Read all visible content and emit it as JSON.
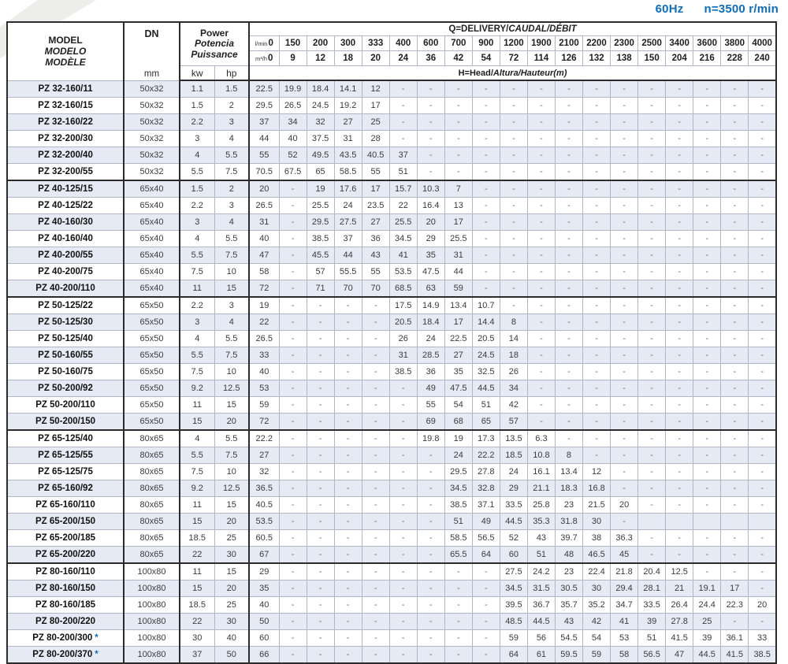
{
  "meta": {
    "frequency": "60Hz",
    "speed": "n=3500 r/min"
  },
  "styles": {
    "accent_blue": "#0e6db6",
    "row_shade": "#e6eaf4",
    "border_dark": "#2b2b2b",
    "border_light": "#b0b7c4"
  },
  "header": {
    "model_lines": [
      "MODEL",
      "MODELO",
      "MODÈLE"
    ],
    "dn_label": "DN",
    "dn_unit": "mm",
    "power_lines": [
      "Power",
      "Potencia",
      "Puissance"
    ],
    "kw_label": "kw",
    "hp_label": "hp",
    "q_title_en": "Q=DELIVERY/",
    "q_title_intl": "CAUDAL/DÉBIT",
    "flow_lmin_label": "l/min",
    "flow_m3h_label": "m³/h",
    "lmin": [
      "0",
      "150",
      "200",
      "300",
      "333",
      "400",
      "600",
      "700",
      "900",
      "1200",
      "1900",
      "2100",
      "2200",
      "2300",
      "2500",
      "3400",
      "3600",
      "3800",
      "4000"
    ],
    "m3h": [
      "0",
      "9",
      "12",
      "18",
      "20",
      "24",
      "36",
      "42",
      "54",
      "72",
      "114",
      "126",
      "132",
      "138",
      "150",
      "204",
      "216",
      "228",
      "240"
    ],
    "h_title_en": "H=Head/",
    "h_title_intl": "Altura/Hauteur(m)"
  },
  "rows": [
    {
      "model": "PZ 32-160/11",
      "star": "",
      "dn": "50x32",
      "kw": "1.1",
      "hp": "1.5",
      "group_end": false,
      "h": [
        "22.5",
        "19.9",
        "18.4",
        "14.1",
        "12",
        "-",
        "-",
        "-",
        "-",
        "-",
        "-",
        "-",
        "-",
        "-",
        "-",
        "-",
        "-",
        "-",
        "-"
      ]
    },
    {
      "model": "PZ 32-160/15",
      "star": "",
      "dn": "50x32",
      "kw": "1.5",
      "hp": "2",
      "group_end": false,
      "h": [
        "29.5",
        "26.5",
        "24.5",
        "19.2",
        "17",
        "-",
        "-",
        "-",
        "-",
        "-",
        "-",
        "-",
        "-",
        "-",
        "-",
        "-",
        "-",
        "-",
        "-"
      ]
    },
    {
      "model": "PZ 32-160/22",
      "star": "",
      "dn": "50x32",
      "kw": "2.2",
      "hp": "3",
      "group_end": false,
      "h": [
        "37",
        "34",
        "32",
        "27",
        "25",
        "-",
        "-",
        "-",
        "-",
        "-",
        "-",
        "-",
        "-",
        "-",
        "-",
        "-",
        "-",
        "-",
        "-"
      ]
    },
    {
      "model": "PZ 32-200/30",
      "star": "",
      "dn": "50x32",
      "kw": "3",
      "hp": "4",
      "group_end": false,
      "h": [
        "44",
        "40",
        "37.5",
        "31",
        "28",
        "-",
        "-",
        "-",
        "-",
        "-",
        "-",
        "-",
        "-",
        "-",
        "-",
        "-",
        "-",
        "-",
        "-"
      ]
    },
    {
      "model": "PZ 32-200/40",
      "star": "",
      "dn": "50x32",
      "kw": "4",
      "hp": "5.5",
      "group_end": false,
      "h": [
        "55",
        "52",
        "49.5",
        "43.5",
        "40.5",
        "37",
        "-",
        "-",
        "-",
        "-",
        "-",
        "-",
        "-",
        "-",
        "-",
        "-",
        "-",
        "-",
        "-"
      ]
    },
    {
      "model": "PZ 32-200/55",
      "star": "",
      "dn": "50x32",
      "kw": "5.5",
      "hp": "7.5",
      "group_end": true,
      "h": [
        "70.5",
        "67.5",
        "65",
        "58.5",
        "55",
        "51",
        "-",
        "-",
        "-",
        "-",
        "-",
        "-",
        "-",
        "-",
        "-",
        "-",
        "-",
        "-",
        "-"
      ]
    },
    {
      "model": "PZ 40-125/15",
      "star": "",
      "dn": "65x40",
      "kw": "1.5",
      "hp": "2",
      "group_end": false,
      "h": [
        "20",
        "-",
        "19",
        "17.6",
        "17",
        "15.7",
        "10.3",
        "7",
        "-",
        "-",
        "-",
        "-",
        "-",
        "-",
        "-",
        "-",
        "-",
        "-",
        "-"
      ]
    },
    {
      "model": "PZ 40-125/22",
      "star": "",
      "dn": "65x40",
      "kw": "2.2",
      "hp": "3",
      "group_end": false,
      "h": [
        "26.5",
        "-",
        "25.5",
        "24",
        "23.5",
        "22",
        "16.4",
        "13",
        "-",
        "-",
        "-",
        "-",
        "-",
        "-",
        "-",
        "-",
        "-",
        "-",
        "-"
      ]
    },
    {
      "model": "PZ 40-160/30",
      "star": "",
      "dn": "65x40",
      "kw": "3",
      "hp": "4",
      "group_end": false,
      "h": [
        "31",
        "-",
        "29.5",
        "27.5",
        "27",
        "25.5",
        "20",
        "17",
        "-",
        "-",
        "-",
        "-",
        "-",
        "-",
        "-",
        "-",
        "-",
        "-",
        "-"
      ]
    },
    {
      "model": "PZ 40-160/40",
      "star": "",
      "dn": "65x40",
      "kw": "4",
      "hp": "5.5",
      "group_end": false,
      "h": [
        "40",
        "-",
        "38.5",
        "37",
        "36",
        "34.5",
        "29",
        "25.5",
        "-",
        "-",
        "-",
        "-",
        "-",
        "-",
        "-",
        "-",
        "-",
        "-",
        "-"
      ]
    },
    {
      "model": "PZ 40-200/55",
      "star": "",
      "dn": "65x40",
      "kw": "5.5",
      "hp": "7.5",
      "group_end": false,
      "h": [
        "47",
        "-",
        "45.5",
        "44",
        "43",
        "41",
        "35",
        "31",
        "-",
        "-",
        "-",
        "-",
        "-",
        "-",
        "-",
        "-",
        "-",
        "-",
        "-"
      ]
    },
    {
      "model": "PZ 40-200/75",
      "star": "",
      "dn": "65x40",
      "kw": "7.5",
      "hp": "10",
      "group_end": false,
      "h": [
        "58",
        "-",
        "57",
        "55.5",
        "55",
        "53.5",
        "47.5",
        "44",
        "-",
        "-",
        "-",
        "-",
        "-",
        "-",
        "-",
        "-",
        "-",
        "-",
        "-"
      ]
    },
    {
      "model": "PZ 40-200/110",
      "star": "",
      "dn": "65x40",
      "kw": "11",
      "hp": "15",
      "group_end": true,
      "h": [
        "72",
        "-",
        "71",
        "70",
        "70",
        "68.5",
        "63",
        "59",
        "-",
        "-",
        "-",
        "-",
        "-",
        "-",
        "-",
        "-",
        "-",
        "-",
        "-"
      ]
    },
    {
      "model": "PZ 50-125/22",
      "star": "",
      "dn": "65x50",
      "kw": "2.2",
      "hp": "3",
      "group_end": false,
      "h": [
        "19",
        "-",
        "-",
        "-",
        "-",
        "17.5",
        "14.9",
        "13.4",
        "10.7",
        "-",
        "-",
        "-",
        "-",
        "-",
        "-",
        "-",
        "-",
        "-",
        "-"
      ]
    },
    {
      "model": "PZ 50-125/30",
      "star": "",
      "dn": "65x50",
      "kw": "3",
      "hp": "4",
      "group_end": false,
      "h": [
        "22",
        "-",
        "-",
        "-",
        "-",
        "20.5",
        "18.4",
        "17",
        "14.4",
        "8",
        "-",
        "-",
        "-",
        "-",
        "-",
        "-",
        "-",
        "-",
        "-"
      ]
    },
    {
      "model": "PZ 50-125/40",
      "star": "",
      "dn": "65x50",
      "kw": "4",
      "hp": "5.5",
      "group_end": false,
      "h": [
        "26.5",
        "-",
        "-",
        "-",
        "-",
        "26",
        "24",
        "22.5",
        "20.5",
        "14",
        "-",
        "-",
        "-",
        "-",
        "-",
        "-",
        "-",
        "-",
        "-"
      ]
    },
    {
      "model": "PZ 50-160/55",
      "star": "",
      "dn": "65x50",
      "kw": "5.5",
      "hp": "7.5",
      "group_end": false,
      "h": [
        "33",
        "-",
        "-",
        "-",
        "-",
        "31",
        "28.5",
        "27",
        "24.5",
        "18",
        "-",
        "-",
        "-",
        "-",
        "-",
        "-",
        "-",
        "-",
        "-"
      ]
    },
    {
      "model": "PZ 50-160/75",
      "star": "",
      "dn": "65x50",
      "kw": "7.5",
      "hp": "10",
      "group_end": false,
      "h": [
        "40",
        "-",
        "-",
        "-",
        "-",
        "38.5",
        "36",
        "35",
        "32.5",
        "26",
        "-",
        "-",
        "-",
        "-",
        "-",
        "-",
        "-",
        "-",
        "-"
      ]
    },
    {
      "model": "PZ 50-200/92",
      "star": "",
      "dn": "65x50",
      "kw": "9.2",
      "hp": "12.5",
      "group_end": false,
      "h": [
        "53",
        "-",
        "-",
        "-",
        "-",
        "-",
        "49",
        "47.5",
        "44.5",
        "34",
        "-",
        "-",
        "-",
        "-",
        "-",
        "-",
        "-",
        "-",
        "-"
      ]
    },
    {
      "model": "PZ 50-200/110",
      "star": "",
      "dn": "65x50",
      "kw": "11",
      "hp": "15",
      "group_end": false,
      "h": [
        "59",
        "-",
        "-",
        "-",
        "-",
        "-",
        "55",
        "54",
        "51",
        "42",
        "-",
        "-",
        "-",
        "-",
        "-",
        "-",
        "-",
        "-",
        "-"
      ]
    },
    {
      "model": "PZ 50-200/150",
      "star": "",
      "dn": "65x50",
      "kw": "15",
      "hp": "20",
      "group_end": true,
      "h": [
        "72",
        "-",
        "-",
        "-",
        "-",
        "-",
        "69",
        "68",
        "65",
        "57",
        "-",
        "-",
        "-",
        "-",
        "-",
        "-",
        "-",
        "-",
        "-"
      ]
    },
    {
      "model": "PZ 65-125/40",
      "star": "",
      "dn": "80x65",
      "kw": "4",
      "hp": "5.5",
      "group_end": false,
      "h": [
        "22.2",
        "-",
        "-",
        "-",
        "-",
        "-",
        "19.8",
        "19",
        "17.3",
        "13.5",
        "6.3",
        "-",
        "-",
        "-",
        "-",
        "-",
        "-",
        "-",
        "-"
      ]
    },
    {
      "model": "PZ 65-125/55",
      "star": "",
      "dn": "80x65",
      "kw": "5.5",
      "hp": "7.5",
      "group_end": false,
      "h": [
        "27",
        "-",
        "-",
        "-",
        "-",
        "-",
        "-",
        "24",
        "22.2",
        "18.5",
        "10.8",
        "8",
        "-",
        "-",
        "-",
        "-",
        "-",
        "-",
        "-"
      ]
    },
    {
      "model": "PZ 65-125/75",
      "star": "",
      "dn": "80x65",
      "kw": "7.5",
      "hp": "10",
      "group_end": false,
      "h": [
        "32",
        "-",
        "-",
        "-",
        "-",
        "-",
        "-",
        "29.5",
        "27.8",
        "24",
        "16.1",
        "13.4",
        "12",
        "-",
        "-",
        "-",
        "-",
        "-",
        "-"
      ]
    },
    {
      "model": "PZ 65-160/92",
      "star": "",
      "dn": "80x65",
      "kw": "9.2",
      "hp": "12.5",
      "group_end": false,
      "h": [
        "36.5",
        "-",
        "-",
        "-",
        "-",
        "-",
        "-",
        "34.5",
        "32.8",
        "29",
        "21.1",
        "18.3",
        "16.8",
        "-",
        "-",
        "-",
        "-",
        "-",
        "-"
      ]
    },
    {
      "model": "PZ 65-160/110",
      "star": "",
      "dn": "80x65",
      "kw": "11",
      "hp": "15",
      "group_end": false,
      "h": [
        "40.5",
        "-",
        "-",
        "-",
        "-",
        "-",
        "-",
        "38.5",
        "37.1",
        "33.5",
        "25.8",
        "23",
        "21.5",
        "20",
        "-",
        "-",
        "-",
        "-",
        "-"
      ]
    },
    {
      "model": "PZ 65-200/150",
      "star": "",
      "dn": "80x65",
      "kw": "15",
      "hp": "20",
      "group_end": false,
      "h": [
        "53.5",
        "-",
        "-",
        "-",
        "-",
        "-",
        "-",
        "51",
        "49",
        "44.5",
        "35.3",
        "31.8",
        "30",
        "-",
        "",
        "",
        "",
        "",
        ""
      ]
    },
    {
      "model": "PZ 65-200/185",
      "star": "",
      "dn": "80x65",
      "kw": "18.5",
      "hp": "25",
      "group_end": false,
      "h": [
        "60.5",
        "-",
        "-",
        "-",
        "-",
        "-",
        "-",
        "58.5",
        "56.5",
        "52",
        "43",
        "39.7",
        "38",
        "36.3",
        "-",
        "-",
        "-",
        "-",
        "-"
      ]
    },
    {
      "model": "PZ 65-200/220",
      "star": "",
      "dn": "80x65",
      "kw": "22",
      "hp": "30",
      "group_end": true,
      "h": [
        "67",
        "-",
        "-",
        "-",
        "-",
        "-",
        "-",
        "65.5",
        "64",
        "60",
        "51",
        "48",
        "46.5",
        "45",
        "-",
        "-",
        "-",
        "-",
        "-"
      ]
    },
    {
      "model": "PZ 80-160/110",
      "star": "",
      "dn": "100x80",
      "kw": "11",
      "hp": "15",
      "group_end": false,
      "h": [
        "29",
        "-",
        "-",
        "-",
        "-",
        "-",
        "-",
        "-",
        "-",
        "27.5",
        "24.2",
        "23",
        "22.4",
        "21.8",
        "20.4",
        "12.5",
        "-",
        "-",
        "-"
      ]
    },
    {
      "model": "PZ 80-160/150",
      "star": "",
      "dn": "100x80",
      "kw": "15",
      "hp": "20",
      "group_end": false,
      "h": [
        "35",
        "-",
        "-",
        "-",
        "-",
        "-",
        "-",
        "-",
        "-",
        "34.5",
        "31.5",
        "30.5",
        "30",
        "29.4",
        "28.1",
        "21",
        "19.1",
        "17",
        "-"
      ]
    },
    {
      "model": "PZ 80-160/185",
      "star": "",
      "dn": "100x80",
      "kw": "18.5",
      "hp": "25",
      "group_end": false,
      "h": [
        "40",
        "-",
        "-",
        "-",
        "-",
        "-",
        "-",
        "-",
        "-",
        "39.5",
        "36.7",
        "35.7",
        "35.2",
        "34.7",
        "33.5",
        "26.4",
        "24.4",
        "22.3",
        "20"
      ]
    },
    {
      "model": "PZ 80-200/220",
      "star": "",
      "dn": "100x80",
      "kw": "22",
      "hp": "30",
      "group_end": false,
      "h": [
        "50",
        "-",
        "-",
        "-",
        "-",
        "-",
        "-",
        "-",
        "-",
        "48.5",
        "44.5",
        "43",
        "42",
        "41",
        "39",
        "27.8",
        "25",
        "-",
        "-"
      ]
    },
    {
      "model": "PZ 80-200/300",
      "star": "*",
      "dn": "100x80",
      "kw": "30",
      "hp": "40",
      "group_end": false,
      "h": [
        "60",
        "-",
        "-",
        "-",
        "-",
        "-",
        "-",
        "-",
        "-",
        "59",
        "56",
        "54.5",
        "54",
        "53",
        "51",
        "41.5",
        "39",
        "36.1",
        "33"
      ]
    },
    {
      "model": "PZ 80-200/370",
      "star": "*",
      "dn": "100x80",
      "kw": "37",
      "hp": "50",
      "group_end": false,
      "h": [
        "66",
        "-",
        "-",
        "-",
        "-",
        "-",
        "-",
        "-",
        "-",
        "64",
        "61",
        "59.5",
        "59",
        "58",
        "56.5",
        "47",
        "44.5",
        "41.5",
        "38.5"
      ]
    }
  ]
}
